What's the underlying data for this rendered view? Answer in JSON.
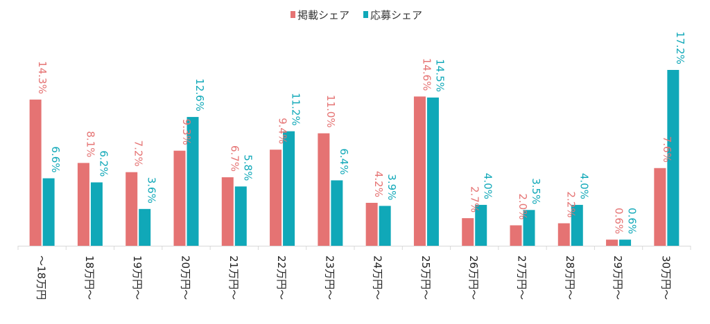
{
  "chart_data": {
    "type": "bar",
    "categories": [
      "〜18万円",
      "18万円〜",
      "19万円〜",
      "20万円〜",
      "21万円〜",
      "22万円〜",
      "23万円〜",
      "24万円〜",
      "25万円〜",
      "26万円〜",
      "27万円〜",
      "28万円〜",
      "29万円〜",
      "30万円〜"
    ],
    "series": [
      {
        "name": "掲載シェア",
        "color": "#e57373",
        "values": [
          14.3,
          8.1,
          7.2,
          9.3,
          6.7,
          9.4,
          11.0,
          4.2,
          14.6,
          2.7,
          2.0,
          2.2,
          0.6,
          7.6
        ],
        "labels": [
          "14.3%",
          "8.1%",
          "7.2%",
          "9.3%",
          "6.7%",
          "9.4%",
          "11.0%",
          "4.2%",
          "14.6%",
          "2.7%",
          "2.0%",
          "2.2%",
          "0.6%",
          "7.6%"
        ]
      },
      {
        "name": "応募シェア",
        "color": "#10a8b8",
        "values": [
          6.6,
          6.2,
          3.6,
          12.6,
          5.8,
          11.2,
          6.4,
          3.9,
          14.5,
          4.0,
          3.5,
          4.0,
          0.6,
          17.2
        ],
        "labels": [
          "6.6%",
          "6.2%",
          "3.6%",
          "12.6%",
          "5.8%",
          "11.2%",
          "6.4%",
          "3.9%",
          "14.5%",
          "4.0%",
          "3.5%",
          "4.0%",
          "0.6%",
          "17.2%"
        ]
      }
    ],
    "legend": "top-center",
    "grid": false,
    "ylim": [
      0,
      17.2
    ]
  }
}
